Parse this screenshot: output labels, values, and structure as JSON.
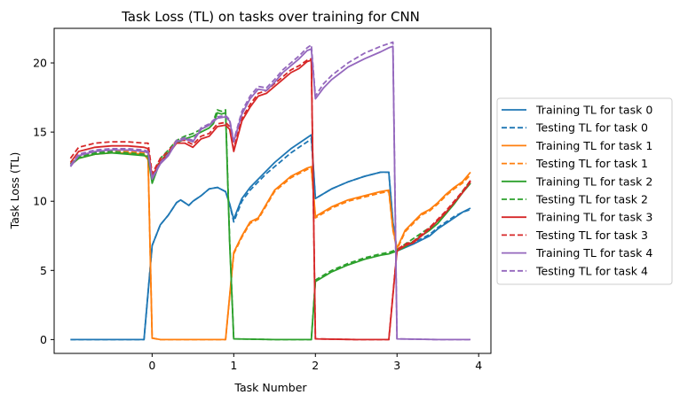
{
  "chart_data": {
    "type": "line",
    "title": "Task Loss (TL) on tasks over training for CNN",
    "xlabel": "Task Number",
    "ylabel": "Task Loss (TL)",
    "xlim": [
      -1.2,
      4.15
    ],
    "ylim": [
      -1.0,
      22.5
    ],
    "xticks": [
      0,
      1,
      2,
      3,
      4
    ],
    "xtick_labels": [
      "0",
      "1",
      "2",
      "3",
      "4"
    ],
    "yticks": [
      0,
      5,
      10,
      15,
      20
    ],
    "ytick_labels": [
      "0",
      "5",
      "10",
      "15",
      "20"
    ],
    "grid": false,
    "legend_position": "outside-right",
    "series": [
      {
        "name": "Training TL for task 0",
        "color": "#1f77b4",
        "dash": "solid",
        "x": [
          -1.0,
          -0.1,
          0.0,
          0.1,
          0.2,
          0.3,
          0.35,
          0.45,
          0.5,
          0.6,
          0.7,
          0.8,
          0.9,
          0.95,
          1.0,
          1.1,
          1.2,
          1.3,
          1.4,
          1.5,
          1.6,
          1.7,
          1.8,
          1.9,
          1.95,
          2.0,
          2.2,
          2.4,
          2.6,
          2.8,
          2.9,
          2.95,
          3.0,
          3.2,
          3.4,
          3.5,
          3.6,
          3.7,
          3.8,
          3.9
        ],
        "y": [
          0.0,
          0.0,
          6.8,
          8.3,
          9.0,
          9.9,
          10.1,
          9.7,
          10.0,
          10.4,
          10.9,
          11.0,
          10.7,
          9.8,
          8.7,
          10.2,
          11.0,
          11.6,
          12.2,
          12.8,
          13.3,
          13.8,
          14.2,
          14.6,
          14.8,
          10.2,
          10.9,
          11.4,
          11.8,
          12.1,
          12.1,
          8.5,
          6.4,
          6.9,
          7.5,
          8.0,
          8.4,
          8.8,
          9.2,
          9.5
        ]
      },
      {
        "name": "Testing TL for task 0",
        "color": "#1f77b4",
        "dash": "dashed",
        "x": [
          -1.0,
          -0.1,
          0.0,
          0.1,
          0.2,
          0.3,
          0.35,
          0.45,
          0.5,
          0.6,
          0.7,
          0.8,
          0.9,
          0.95,
          1.0,
          1.1,
          1.2,
          1.3,
          1.4,
          1.5,
          1.6,
          1.7,
          1.8,
          1.9,
          1.95,
          2.0,
          2.2,
          2.4,
          2.6,
          2.8,
          2.9,
          2.95,
          3.0,
          3.2,
          3.4,
          3.5,
          3.6,
          3.7,
          3.8,
          3.9
        ],
        "y": [
          0.0,
          0.0,
          6.8,
          8.3,
          9.0,
          9.9,
          10.1,
          9.7,
          10.0,
          10.4,
          10.9,
          11.0,
          10.7,
          9.8,
          8.5,
          10.0,
          10.8,
          11.4,
          12.0,
          12.5,
          13.0,
          13.5,
          13.9,
          14.3,
          14.5,
          10.2,
          10.9,
          11.4,
          11.8,
          12.1,
          12.1,
          8.5,
          6.5,
          7.0,
          7.6,
          8.1,
          8.5,
          8.9,
          9.2,
          9.4
        ]
      },
      {
        "name": "Training TL for task 1",
        "color": "#ff7f0e",
        "dash": "solid",
        "x": [
          -1.0,
          -0.9,
          -0.7,
          -0.5,
          -0.3,
          -0.1,
          -0.05,
          0.0,
          0.1,
          0.5,
          0.9,
          1.0,
          1.1,
          1.2,
          1.3,
          1.4,
          1.5,
          1.6,
          1.7,
          1.8,
          1.9,
          1.95,
          2.0,
          2.2,
          2.4,
          2.6,
          2.8,
          2.9,
          2.95,
          3.0,
          3.1,
          3.2,
          3.3,
          3.4,
          3.5,
          3.6,
          3.7,
          3.8,
          3.9
        ],
        "y": [
          12.6,
          13.1,
          13.4,
          13.5,
          13.5,
          13.4,
          13.0,
          0.1,
          0.0,
          0.0,
          0.0,
          6.3,
          7.5,
          8.5,
          8.8,
          9.8,
          10.8,
          11.3,
          11.8,
          12.1,
          12.4,
          12.5,
          8.9,
          9.6,
          10.1,
          10.4,
          10.7,
          10.8,
          8.0,
          6.6,
          7.9,
          8.5,
          9.1,
          9.4,
          9.9,
          10.5,
          11.0,
          11.4,
          12.1
        ]
      },
      {
        "name": "Testing TL for task 1",
        "color": "#ff7f0e",
        "dash": "dashed",
        "x": [
          -1.0,
          -0.9,
          -0.7,
          -0.5,
          -0.3,
          -0.1,
          -0.05,
          0.0,
          0.1,
          0.5,
          0.9,
          1.0,
          1.1,
          1.2,
          1.3,
          1.4,
          1.5,
          1.6,
          1.7,
          1.8,
          1.9,
          1.95,
          2.0,
          2.2,
          2.4,
          2.6,
          2.8,
          2.9,
          2.95,
          3.0,
          3.1,
          3.2,
          3.3,
          3.4,
          3.5,
          3.6,
          3.7,
          3.8,
          3.9
        ],
        "y": [
          12.7,
          13.2,
          13.5,
          13.6,
          13.6,
          13.5,
          13.1,
          0.1,
          0.0,
          0.0,
          0.0,
          6.2,
          7.4,
          8.4,
          8.7,
          9.7,
          10.7,
          11.2,
          11.7,
          12.0,
          12.3,
          12.4,
          8.8,
          9.5,
          10.0,
          10.3,
          10.6,
          10.7,
          7.9,
          6.5,
          7.8,
          8.4,
          9.0,
          9.3,
          9.8,
          10.4,
          10.9,
          11.3,
          11.9
        ]
      },
      {
        "name": "Training TL for task 2",
        "color": "#2ca02c",
        "dash": "solid",
        "x": [
          -1.0,
          -0.9,
          -0.7,
          -0.5,
          -0.3,
          -0.1,
          -0.05,
          0.0,
          0.1,
          0.2,
          0.3,
          0.4,
          0.5,
          0.6,
          0.7,
          0.75,
          0.8,
          0.85,
          0.9,
          0.95,
          1.0,
          1.5,
          1.9,
          1.95,
          2.0,
          2.2,
          2.4,
          2.6,
          2.8,
          2.9,
          2.95,
          3.0,
          3.1,
          3.2,
          3.3,
          3.4,
          3.5,
          3.6,
          3.7,
          3.8,
          3.9
        ],
        "y": [
          12.6,
          13.1,
          13.4,
          13.5,
          13.4,
          13.3,
          13.2,
          11.3,
          12.9,
          13.5,
          14.2,
          14.5,
          14.7,
          15.0,
          15.3,
          15.6,
          16.4,
          16.3,
          16.4,
          7.0,
          0.05,
          0.0,
          0.0,
          0.0,
          4.2,
          4.9,
          5.4,
          5.8,
          6.1,
          6.2,
          6.3,
          6.4,
          6.7,
          7.1,
          7.5,
          7.9,
          8.4,
          9.1,
          9.8,
          10.6,
          11.3
        ]
      },
      {
        "name": "Testing TL for task 2",
        "color": "#2ca02c",
        "dash": "dashed",
        "x": [
          -1.0,
          -0.9,
          -0.7,
          -0.5,
          -0.3,
          -0.1,
          -0.05,
          0.0,
          0.1,
          0.2,
          0.3,
          0.4,
          0.5,
          0.6,
          0.7,
          0.75,
          0.8,
          0.85,
          0.9,
          0.95,
          1.0,
          1.5,
          1.9,
          1.95,
          2.0,
          2.2,
          2.4,
          2.6,
          2.8,
          2.9,
          2.95,
          3.0,
          3.1,
          3.2,
          3.3,
          3.4,
          3.5,
          3.6,
          3.7,
          3.8,
          3.9
        ],
        "y": [
          12.7,
          13.2,
          13.5,
          13.6,
          13.5,
          13.4,
          13.3,
          11.5,
          13.1,
          13.7,
          14.4,
          14.7,
          14.9,
          15.2,
          15.5,
          15.8,
          16.6,
          16.5,
          16.6,
          7.2,
          0.05,
          0.0,
          0.0,
          0.0,
          4.3,
          5.0,
          5.5,
          5.9,
          6.2,
          6.3,
          6.4,
          6.5,
          6.9,
          7.3,
          7.7,
          8.1,
          8.6,
          9.2,
          9.9,
          10.7,
          11.5
        ]
      },
      {
        "name": "Training TL for task 3",
        "color": "#d62728",
        "dash": "solid",
        "x": [
          -1.0,
          -0.9,
          -0.7,
          -0.5,
          -0.3,
          -0.1,
          -0.05,
          0.0,
          0.1,
          0.2,
          0.3,
          0.4,
          0.5,
          0.6,
          0.7,
          0.8,
          0.9,
          0.95,
          1.0,
          1.1,
          1.2,
          1.3,
          1.4,
          1.5,
          1.6,
          1.7,
          1.8,
          1.9,
          1.95,
          2.0,
          2.5,
          2.9,
          3.0,
          3.1,
          3.2,
          3.3,
          3.4,
          3.5,
          3.6,
          3.7,
          3.8,
          3.9
        ],
        "y": [
          12.8,
          13.6,
          13.9,
          14.0,
          14.0,
          13.9,
          13.8,
          11.8,
          12.9,
          13.4,
          14.2,
          14.2,
          13.9,
          14.5,
          14.7,
          15.4,
          15.5,
          15.2,
          13.6,
          15.8,
          16.8,
          17.6,
          17.8,
          18.3,
          18.8,
          19.3,
          19.6,
          20.1,
          20.2,
          0.05,
          0.0,
          0.0,
          6.4,
          6.8,
          7.0,
          7.5,
          8.0,
          8.6,
          9.2,
          9.9,
          10.6,
          11.4
        ]
      },
      {
        "name": "Testing TL for task 3",
        "color": "#d62728",
        "dash": "dashed",
        "x": [
          -1.0,
          -0.9,
          -0.7,
          -0.5,
          -0.3,
          -0.1,
          -0.05,
          0.0,
          0.1,
          0.2,
          0.3,
          0.4,
          0.5,
          0.6,
          0.7,
          0.8,
          0.9,
          0.95,
          1.0,
          1.1,
          1.2,
          1.3,
          1.4,
          1.5,
          1.6,
          1.7,
          1.8,
          1.9,
          1.95,
          2.0,
          2.5,
          2.9,
          3.0,
          3.1,
          3.2,
          3.3,
          3.4,
          3.5,
          3.6,
          3.7,
          3.8,
          3.9
        ],
        "y": [
          13.1,
          13.9,
          14.2,
          14.3,
          14.3,
          14.2,
          14.2,
          12.0,
          13.1,
          13.6,
          14.4,
          14.4,
          14.1,
          14.7,
          14.9,
          15.6,
          15.7,
          15.4,
          13.8,
          16.0,
          17.0,
          17.8,
          18.0,
          18.5,
          19.0,
          19.5,
          19.8,
          20.2,
          20.3,
          0.05,
          0.0,
          0.0,
          6.5,
          6.9,
          7.1,
          7.6,
          8.1,
          8.7,
          9.3,
          10.0,
          10.7,
          11.5
        ]
      },
      {
        "name": "Training TL for task 4",
        "color": "#9467bd",
        "dash": "solid",
        "x": [
          -1.0,
          -0.9,
          -0.7,
          -0.5,
          -0.3,
          -0.1,
          -0.05,
          0.0,
          0.1,
          0.2,
          0.3,
          0.4,
          0.5,
          0.6,
          0.7,
          0.8,
          0.9,
          0.95,
          1.0,
          1.1,
          1.2,
          1.3,
          1.4,
          1.5,
          1.6,
          1.7,
          1.8,
          1.9,
          1.95,
          2.0,
          2.1,
          2.2,
          2.4,
          2.6,
          2.8,
          2.9,
          2.95,
          3.0,
          3.5,
          3.9
        ],
        "y": [
          12.5,
          13.3,
          13.6,
          13.7,
          13.7,
          13.6,
          13.5,
          11.6,
          12.7,
          13.3,
          14.3,
          14.5,
          14.3,
          15.2,
          15.5,
          16.0,
          16.1,
          15.8,
          14.3,
          16.3,
          17.4,
          18.1,
          18.0,
          18.6,
          19.3,
          19.8,
          20.3,
          20.9,
          21.0,
          17.4,
          18.2,
          18.8,
          19.7,
          20.3,
          20.8,
          21.1,
          21.2,
          0.05,
          0.0,
          0.0
        ]
      },
      {
        "name": "Testing TL for task 4",
        "color": "#9467bd",
        "dash": "dashed",
        "x": [
          -1.0,
          -0.9,
          -0.7,
          -0.5,
          -0.3,
          -0.1,
          -0.05,
          0.0,
          0.1,
          0.2,
          0.3,
          0.4,
          0.5,
          0.6,
          0.7,
          0.8,
          0.9,
          0.95,
          1.0,
          1.1,
          1.2,
          1.3,
          1.4,
          1.5,
          1.6,
          1.7,
          1.8,
          1.9,
          1.95,
          2.0,
          2.1,
          2.2,
          2.4,
          2.6,
          2.8,
          2.9,
          2.95,
          3.0,
          3.5,
          3.9
        ],
        "y": [
          12.6,
          13.4,
          13.7,
          13.8,
          13.8,
          13.7,
          13.6,
          11.7,
          12.8,
          13.4,
          14.4,
          14.6,
          14.4,
          15.3,
          15.6,
          16.1,
          16.2,
          15.9,
          14.4,
          16.5,
          17.6,
          18.3,
          18.2,
          18.8,
          19.5,
          20.0,
          20.5,
          21.1,
          21.3,
          17.6,
          18.5,
          19.1,
          20.0,
          20.7,
          21.2,
          21.4,
          21.5,
          0.05,
          0.0,
          0.0
        ]
      }
    ]
  }
}
